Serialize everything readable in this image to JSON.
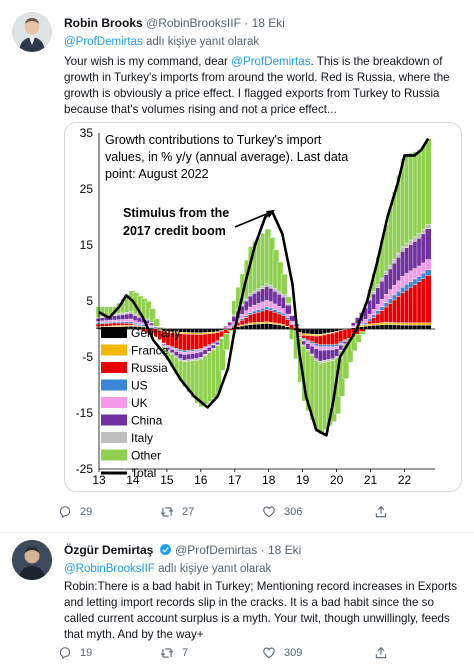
{
  "tweet1": {
    "author_name": "Robin Brooks",
    "handle": "@RobinBrooksIIF",
    "date": "18 Eki",
    "reply_to": "@ProfDemirtas",
    "reply_suffix": "adlı kişiye yanıt olarak",
    "text_before": "Your wish is my command, dear ",
    "text_mention": "@ProfDemirtas",
    "text_after": ". This is the breakdown of growth in Turkey's imports from around the world. Red is Russia, where the growth is obviously a price effect. I flagged exports from Turkey to Russia because that's volumes rising and not a price effect...",
    "replies": "29",
    "retweets": "27",
    "likes": "306"
  },
  "tweet2": {
    "author_name": "Özgür Demirtaş",
    "handle": "@ProfDemirtas",
    "date": "18 Eki",
    "reply_to": "@RobinBrooksIIF",
    "reply_suffix": "adlı kişiye yanıt olarak",
    "text": "Robin:There is a bad habit in Turkey; Mentioning record increases in Exports and letting import records slip in the cracks. It is a bad habit since the so called current account surplus is a myth. Your twit, though unwillingly, feeds that myth. And by the way+",
    "replies": "19",
    "retweets": "7",
    "likes": "309"
  },
  "colors": {
    "accent": "#1d9bf0",
    "muted": "#536471",
    "verified": "#1d9bf0"
  },
  "icons": [
    "reply-icon",
    "retweet-icon",
    "like-icon",
    "share-icon",
    "verified-badge-icon"
  ],
  "chart_data": {
    "type": "area",
    "title_lines": [
      "Growth contributions to Turkey's import",
      "values, in % y/y (annual average). Last data",
      "point: August 2022"
    ],
    "annotation_lines": [
      "Stimulus from the",
      "2017 credit boom"
    ],
    "x_tick_labels": [
      "13",
      "14",
      "15",
      "16",
      "17",
      "18",
      "19",
      "20",
      "21",
      "22"
    ],
    "y_tick_labels": [
      "35",
      "25",
      "15",
      "5",
      "-5",
      "-15",
      "-25"
    ],
    "ylim": [
      -25,
      35
    ],
    "xlim": [
      2013,
      2022.9
    ],
    "legend_placement": "left",
    "series": [
      {
        "name": "Germany",
        "color": "#000000"
      },
      {
        "name": "France",
        "color": "#f2b705"
      },
      {
        "name": "Russia",
        "color": "#e60000"
      },
      {
        "name": "US",
        "color": "#3a86d8"
      },
      {
        "name": "UK",
        "color": "#f59ae8"
      },
      {
        "name": "China",
        "color": "#7030a0"
      },
      {
        "name": "Italy",
        "color": "#bfbfbf"
      },
      {
        "name": "Other",
        "color": "#8fd14f"
      },
      {
        "name": "Total",
        "color": "#000000"
      }
    ],
    "total": {
      "x": [
        2013.0,
        2013.3,
        2013.6,
        2013.8,
        2014.0,
        2014.3,
        2014.6,
        2015.0,
        2015.4,
        2015.8,
        2016.2,
        2016.5,
        2016.8,
        2017.0,
        2017.3,
        2017.6,
        2017.9,
        2018.1,
        2018.4,
        2018.7,
        2018.9,
        2019.1,
        2019.4,
        2019.7,
        2019.9,
        2020.1,
        2020.4,
        2020.6,
        2020.9,
        2021.2,
        2021.5,
        2021.8,
        2022.0,
        2022.3,
        2022.5,
        2022.7
      ],
      "y": [
        3,
        2,
        4,
        6,
        5,
        2,
        -2,
        -5,
        -9,
        -12,
        -14,
        -12,
        -7,
        0,
        8,
        15,
        20,
        21,
        17,
        8,
        -4,
        -12,
        -18,
        -19,
        -13,
        -5,
        -2,
        0,
        5,
        12,
        20,
        26,
        31,
        31,
        32,
        34
      ]
    },
    "stacks": {
      "x": [
        2013.0,
        2013.5,
        2014.0,
        2014.5,
        2015.0,
        2015.5,
        2016.0,
        2016.5,
        2017.0,
        2017.5,
        2018.0,
        2018.5,
        2019.0,
        2019.5,
        2020.0,
        2020.5,
        2021.0,
        2021.5,
        2022.0,
        2022.5,
        2022.7
      ],
      "layers": [
        {
          "name": "Germany",
          "values": [
            0.3,
            0.4,
            0.5,
            0.3,
            -0.4,
            -0.6,
            -0.7,
            -0.5,
            0.3,
            0.8,
            1.0,
            0.6,
            -0.8,
            -1.0,
            -0.5,
            0.2,
            0.6,
            0.8,
            0.7,
            0.7,
            0.7
          ]
        },
        {
          "name": "France",
          "values": [
            0.1,
            0.2,
            0.2,
            0.1,
            -0.2,
            -0.3,
            -0.3,
            -0.2,
            0.1,
            0.3,
            0.3,
            0.2,
            -0.3,
            -0.3,
            -0.1,
            0.1,
            0.3,
            0.4,
            0.4,
            0.4,
            0.4
          ]
        },
        {
          "name": "Russia",
          "values": [
            0.5,
            0.5,
            0.3,
            -0.8,
            -2.2,
            -3.0,
            -2.6,
            -1.5,
            0.2,
            1.5,
            2.2,
            1.5,
            -0.4,
            -1.5,
            -2.2,
            -1.5,
            0.5,
            2.8,
            5.5,
            7.5,
            8.5
          ]
        },
        {
          "name": "US",
          "values": [
            0.2,
            0.2,
            0.3,
            0.2,
            -0.1,
            -0.3,
            -0.2,
            -0.2,
            0.2,
            0.4,
            0.5,
            0.4,
            -0.2,
            -0.4,
            -0.4,
            0.0,
            0.4,
            0.8,
            1.0,
            1.0,
            1.0
          ]
        },
        {
          "name": "UK",
          "values": [
            0.3,
            0.3,
            0.5,
            0.3,
            -0.2,
            -0.4,
            -0.4,
            -0.1,
            0.5,
            1.0,
            1.2,
            0.8,
            -0.2,
            -0.6,
            -0.5,
            0.2,
            0.8,
            1.5,
            2.0,
            1.8,
            1.8
          ]
        },
        {
          "name": "China",
          "values": [
            0.5,
            0.8,
            1.0,
            0.6,
            -0.4,
            -1.0,
            -1.0,
            -0.5,
            1.0,
            2.0,
            2.5,
            2.0,
            -0.5,
            -2.0,
            -1.5,
            0.5,
            2.5,
            3.5,
            4.5,
            5.0,
            5.5
          ]
        },
        {
          "name": "Italy",
          "values": [
            0.2,
            0.3,
            0.3,
            0.2,
            -0.2,
            -0.3,
            -0.3,
            -0.2,
            0.2,
            0.4,
            0.5,
            0.4,
            -0.2,
            -0.4,
            -0.3,
            0.1,
            0.4,
            0.6,
            0.8,
            0.8,
            0.8
          ]
        },
        {
          "name": "Other",
          "values": [
            1.9,
            1.3,
            3.9,
            3.1,
            -1.3,
            -4.1,
            -8.5,
            -8.8,
            2.5,
            8.6,
            9.8,
            3.1,
            -9.4,
            -12.8,
            -10.5,
            -2.6,
            1.5,
            8.6,
            16.1,
            14.8,
            15.3
          ]
        }
      ]
    }
  }
}
